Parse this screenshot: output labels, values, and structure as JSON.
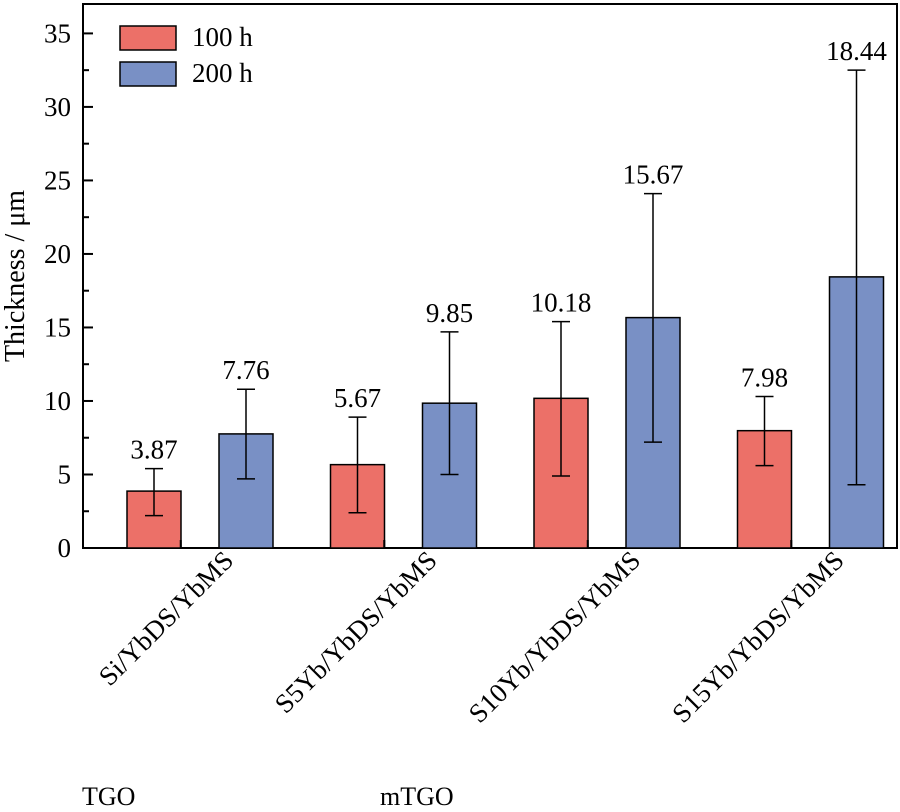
{
  "chart_data": {
    "type": "bar",
    "ylabel": "Thickness / μm",
    "ylim": [
      0,
      37
    ],
    "yticks": [
      0,
      5,
      10,
      15,
      20,
      25,
      30,
      35
    ],
    "categories": [
      "Si/YbDS/YbMS",
      "S5Yb/YbDS/YbMS",
      "S10Yb/YbDS/YbMS",
      "S15Yb/YbDS/YbMS"
    ],
    "series": [
      {
        "name": "100 h",
        "color": "#EC7068",
        "values": [
          3.87,
          5.67,
          10.18,
          7.98
        ],
        "error_low": [
          2.2,
          2.4,
          4.9,
          5.6
        ],
        "error_high": [
          5.4,
          8.9,
          15.4,
          10.3
        ],
        "labels": [
          "3.87",
          "5.67",
          "10.18",
          "7.98"
        ]
      },
      {
        "name": "200 h",
        "color": "#7990C5",
        "values": [
          7.76,
          9.85,
          15.67,
          18.44
        ],
        "error_low": [
          4.7,
          5.0,
          7.2,
          4.3
        ],
        "error_high": [
          10.8,
          14.7,
          24.1,
          32.5
        ],
        "labels": [
          "7.76",
          "9.85",
          "15.67",
          "18.44"
        ]
      }
    ],
    "legend_position": "top-left",
    "grid": false
  },
  "notes": {
    "tgo": "TGO",
    "mtgo": "mTGO"
  }
}
